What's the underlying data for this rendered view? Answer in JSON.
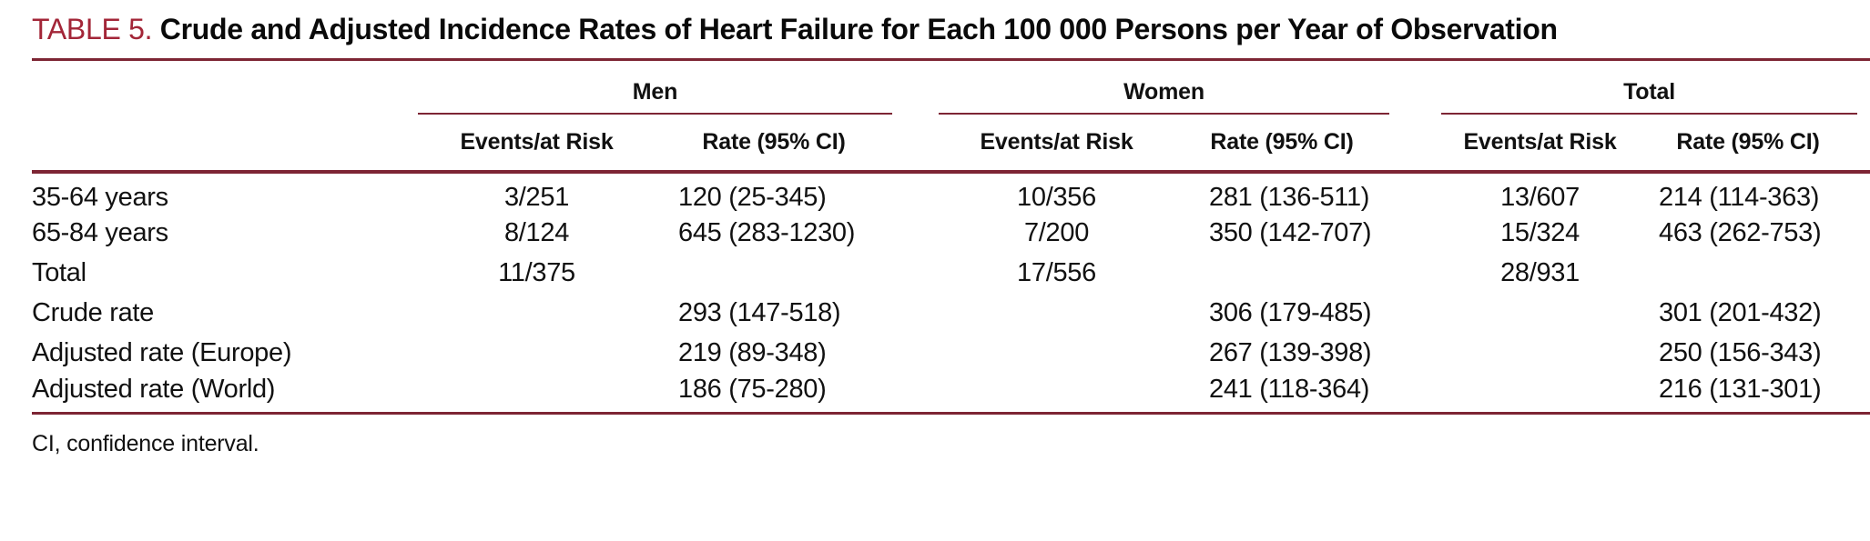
{
  "table": {
    "label": "TABLE 5.",
    "title": "Crude and Adjusted Incidence Rates of Heart Failure for Each 100 000 Persons per Year of Observation",
    "groups": {
      "men": "Men",
      "women": "Women",
      "total": "Total"
    },
    "sub_headers": {
      "events": "Events/at Risk",
      "rate": "Rate (95% CI)"
    },
    "rows": [
      {
        "label": "35-64 years",
        "men_events": "3/251",
        "men_rate": "120 (25-345)",
        "women_events": "10/356",
        "women_rate": "281 (136-511)",
        "total_events": "13/607",
        "total_rate": "214 (114-363)"
      },
      {
        "label": "65-84 years",
        "men_events": "8/124",
        "men_rate": "645 (283-1230)",
        "women_events": "7/200",
        "women_rate": "350 (142-707)",
        "total_events": "15/324",
        "total_rate": "463 (262-753)"
      },
      {
        "label": "Total",
        "men_events": "11/375",
        "men_rate": "",
        "women_events": "17/556",
        "women_rate": "",
        "total_events": "28/931",
        "total_rate": ""
      },
      {
        "label": "Crude rate",
        "men_events": "",
        "men_rate": "293 (147-518)",
        "women_events": "",
        "women_rate": "306 (179-485)",
        "total_events": "",
        "total_rate": "301 (201-432)"
      },
      {
        "label": "Adjusted rate (Europe)",
        "men_events": "",
        "men_rate": "219 (89-348)",
        "women_events": "",
        "women_rate": "267 (139-398)",
        "total_events": "",
        "total_rate": "250 (156-343)"
      },
      {
        "label": "Adjusted rate (World)",
        "men_events": "",
        "men_rate": "186 (75-280)",
        "women_events": "",
        "women_rate": "241 (118-364)",
        "total_events": "",
        "total_rate": "216 (131-301)"
      }
    ],
    "footnote": "CI, confidence interval.",
    "colors": {
      "accent": "#a32638",
      "rule": "#7d2534"
    }
  }
}
